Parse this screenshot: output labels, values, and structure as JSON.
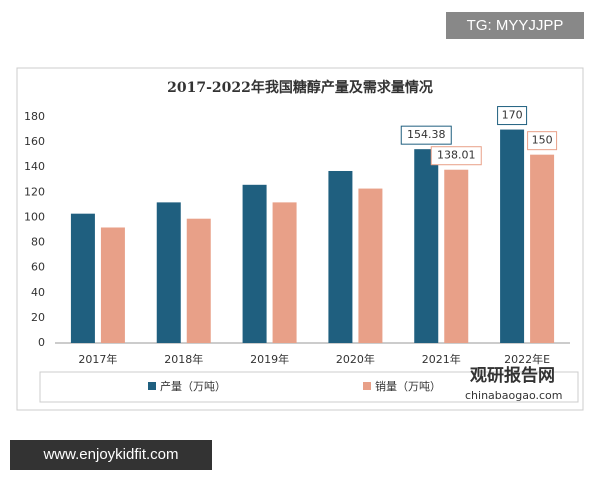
{
  "watermark": "TG: MYYJJPP",
  "footer": "www.enjoykidfit.com",
  "logo": {
    "name": "观研报告网",
    "url": "chinabaogao.com"
  },
  "chart_data": {
    "type": "bar",
    "title": "2017-2022年我国糖醇产量及需求量情况",
    "categories": [
      "2017年",
      "2018年",
      "2019年",
      "2020年",
      "2021年",
      "2022年E"
    ],
    "series": [
      {
        "name": "产量（万吨）",
        "color": "#1f5f7f",
        "values": [
          103,
          112,
          126,
          137,
          154.38,
          170
        ]
      },
      {
        "name": "销量（万吨）",
        "color": "#e8a088",
        "values": [
          92,
          99,
          112,
          123,
          138.01,
          150
        ]
      }
    ],
    "ylim": [
      0,
      180
    ],
    "yticks": [
      0,
      20,
      40,
      60,
      80,
      100,
      120,
      140,
      160,
      180
    ],
    "legend": "bottom"
  }
}
